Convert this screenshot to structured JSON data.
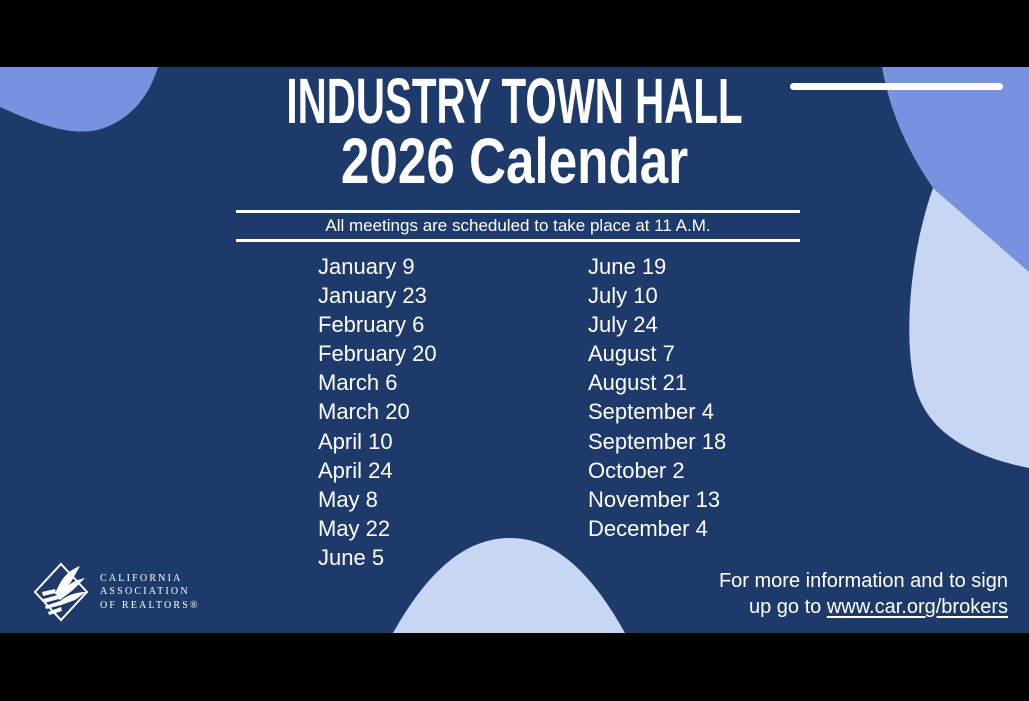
{
  "slide": {
    "title_line1": "INDUSTRY TOWN HALL",
    "title_line2": "2026 Calendar",
    "subtitle": "All meetings are scheduled to take place at 11 A.M.",
    "schedule": {
      "left": [
        "January 9",
        "January 23",
        "February 6",
        "February 20",
        "March 6",
        "March 20",
        "April 10",
        "April 24",
        "May 8",
        "May 22",
        "June 5"
      ],
      "right": [
        "June 19",
        "July 10",
        "July 24",
        "August 7",
        "August 21",
        "September 4",
        "September 18",
        "October 2",
        "November 13",
        "December 4"
      ]
    },
    "footer": {
      "line1": "For more information and to sign",
      "line2_prefix": "up go to ",
      "link": "www.car.org/brokers"
    },
    "logo": {
      "line1": "CALIFORNIA",
      "line2": "ASSOCIATION",
      "line3": "OF REALTORS®"
    },
    "colors": {
      "frame": "#000000",
      "background": "#1d3a6a",
      "blob_medium": "#7792de",
      "blob_light": "#c7d6f2",
      "text": "#ffffff"
    }
  }
}
